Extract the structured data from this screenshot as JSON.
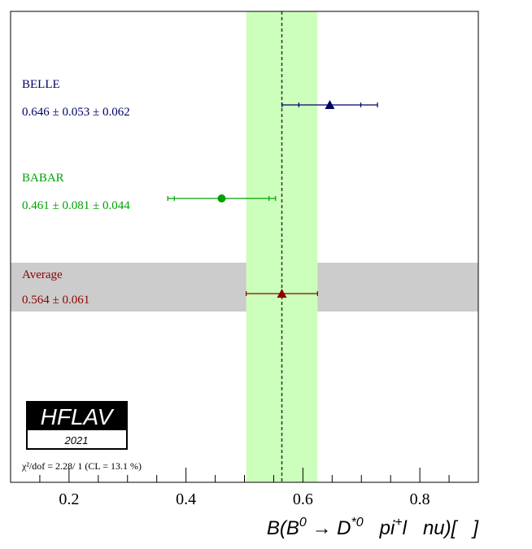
{
  "chart_data": {
    "type": "forest",
    "xlabel": {
      "main": "B(B",
      "sup1": "0",
      "arrow": " → D",
      "sup2": "*0",
      "mid": "   pi",
      "sup3": "+",
      "tail": "l   nu)[   ]"
    },
    "xlim": [
      0.1,
      0.9
    ],
    "xticks": [
      0.2,
      0.4,
      0.6,
      0.8
    ],
    "xtick_labels": [
      "0.2",
      "0.4",
      "0.6",
      "0.8"
    ],
    "minor_step": 0.05,
    "average": {
      "name": "Average",
      "label": "0.564 ± 0.061",
      "value": 0.564,
      "err": 0.061,
      "color": "#8b0000",
      "marker": "triangle"
    },
    "measurements": [
      {
        "name": "BELLE",
        "label": "0.646 ± 0.053 ± 0.062",
        "value": 0.646,
        "stat": 0.053,
        "syst": 0.062,
        "color": "#000066",
        "marker": "triangle"
      },
      {
        "name": "BABAR",
        "label": "0.461 ± 0.081 ± 0.044",
        "value": 0.461,
        "stat": 0.081,
        "syst": 0.044,
        "color": "#00a000",
        "marker": "circle"
      }
    ],
    "band_color": "#ccffbb",
    "avg_band_color": "#cccccc",
    "chi2_text": "χ²/dof = 2.28/ 1 (CL = 13.1 %)",
    "logo": {
      "name": "HFLAV",
      "year": "2021"
    }
  }
}
